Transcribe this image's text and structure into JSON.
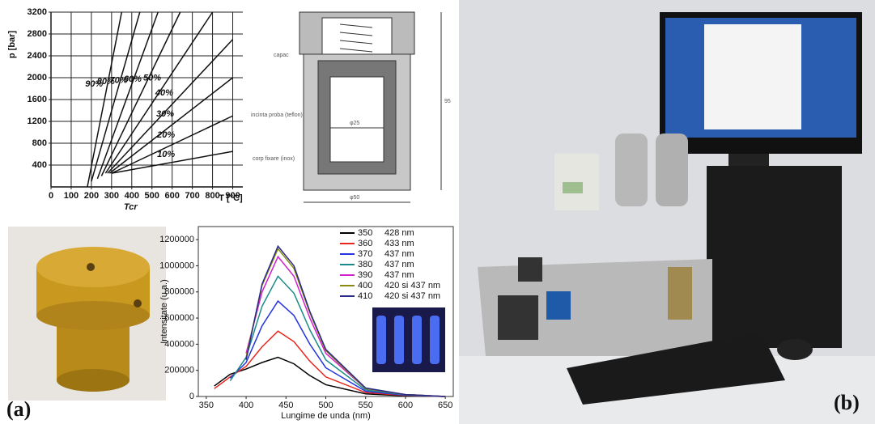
{
  "chart_data": [
    {
      "type": "line",
      "y_label": "p [bar]",
      "x_label": "T [°C]",
      "annotation": "Tcr",
      "xlim": [
        0,
        950
      ],
      "ylim": [
        0,
        3200
      ],
      "xticks": [
        0,
        100,
        200,
        300,
        400,
        500,
        600,
        700,
        800,
        900
      ],
      "yticks": [
        400,
        800,
        1200,
        1600,
        2000,
        2400,
        2800,
        3200
      ],
      "grid": true,
      "color": "#111111",
      "series": [
        {
          "name": "90%",
          "x": [
            180,
            350
          ],
          "values": [
            0,
            3200
          ]
        },
        {
          "name": "80%",
          "x": [
            200,
            440
          ],
          "values": [
            100,
            3200
          ]
        },
        {
          "name": "70%",
          "x": [
            230,
            530
          ],
          "values": [
            150,
            3200
          ]
        },
        {
          "name": "60%",
          "x": [
            250,
            640
          ],
          "values": [
            200,
            3200
          ]
        },
        {
          "name": "50%",
          "x": [
            270,
            800
          ],
          "values": [
            250,
            3200
          ]
        },
        {
          "name": "40%",
          "x": [
            280,
            900
          ],
          "values": [
            250,
            2700
          ]
        },
        {
          "name": "30%",
          "x": [
            290,
            900
          ],
          "values": [
            250,
            2000
          ]
        },
        {
          "name": "20%",
          "x": [
            300,
            900
          ],
          "values": [
            250,
            1300
          ]
        },
        {
          "name": "10%",
          "x": [
            300,
            900
          ],
          "values": [
            250,
            650
          ]
        }
      ]
    },
    {
      "type": "line",
      "y_label": "Intensitate (u.a.)",
      "x_label": "Lungime de unda (nm)",
      "xlim": [
        340,
        660
      ],
      "ylim": [
        0,
        1300000
      ],
      "xticks": [
        350,
        400,
        450,
        500,
        550,
        600,
        650
      ],
      "yticks": [
        0,
        200000,
        400000,
        600000,
        800000,
        1000000,
        1200000
      ],
      "grid": false,
      "legend": "top-right",
      "x": [
        360,
        380,
        400,
        420,
        440,
        460,
        480,
        500,
        550,
        600,
        650
      ],
      "series": [
        {
          "name": "350",
          "peak": "428 nm",
          "color": "#000000",
          "values": [
            80000,
            170000,
            210000,
            260000,
            300000,
            250000,
            160000,
            90000,
            20000,
            5000,
            0
          ]
        },
        {
          "name": "360",
          "peak": "433 nm",
          "color": "#e8261e",
          "values": [
            60000,
            150000,
            230000,
            380000,
            500000,
            420000,
            270000,
            150000,
            30000,
            8000,
            0
          ]
        },
        {
          "name": "370",
          "peak": "437 nm",
          "color": "#2233e0",
          "values": [
            null,
            140000,
            260000,
            540000,
            730000,
            620000,
            400000,
            220000,
            40000,
            10000,
            0
          ]
        },
        {
          "name": "380",
          "peak": "437 nm",
          "color": "#1a8a8a",
          "values": [
            null,
            120000,
            300000,
            690000,
            920000,
            790000,
            510000,
            280000,
            50000,
            12000,
            0
          ]
        },
        {
          "name": "390",
          "peak": "437 nm",
          "color": "#d020d0",
          "values": [
            null,
            null,
            330000,
            800000,
            1070000,
            920000,
            600000,
            330000,
            60000,
            15000,
            0
          ]
        },
        {
          "name": "400",
          "peak": "420 si 437 nm",
          "color": "#8a8a10",
          "values": [
            null,
            null,
            300000,
            850000,
            1130000,
            980000,
            640000,
            350000,
            60000,
            15000,
            0
          ]
        },
        {
          "name": "410",
          "peak": "420 si 437 nm",
          "color": "#2a2a8a",
          "values": [
            null,
            null,
            280000,
            860000,
            1150000,
            1000000,
            650000,
            360000,
            65000,
            15000,
            0
          ]
        }
      ]
    }
  ],
  "diagram": {
    "labels": {
      "capac": "capac",
      "chamber": "incinta proba (teflon)",
      "body": "corp fixare (inox)",
      "inner_d": "φ25",
      "outer_d": "φ50",
      "height": "95"
    }
  },
  "panel_labels": [
    "(a)",
    "(b)"
  ]
}
